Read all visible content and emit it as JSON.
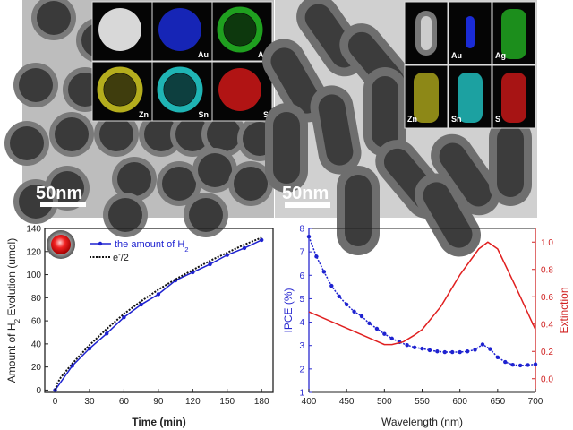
{
  "panels": {
    "tem_left": {
      "scale_bar": "50nm",
      "map_labels": [
        "",
        "Au",
        "Ag",
        "Zn",
        "Sn",
        "S"
      ],
      "map_colors": [
        "#d8d8d8",
        "#1a2bd6",
        "#22b022",
        "#c8c020",
        "#22c8c8",
        "#d01818"
      ]
    },
    "tem_right": {
      "scale_bar": "50nm",
      "map_labels": [
        "",
        "Au",
        "Ag",
        "Zn",
        "Sn",
        "S"
      ],
      "map_colors": [
        "#cccccc",
        "#1a2bd6",
        "#22b022",
        "#c8c020",
        "#22c8c8",
        "#d01818"
      ]
    }
  },
  "chart_data": [
    {
      "type": "line",
      "xlabel": "Time (min)",
      "ylabel": "Amount of H2 Evolution (umol)",
      "ylabel_parts": [
        "Amount of H",
        "2",
        " Evolution (umol)"
      ],
      "xlim": [
        -9,
        190
      ],
      "ylim": [
        -2,
        140
      ],
      "xticks": [
        0,
        30,
        60,
        90,
        120,
        150,
        180
      ],
      "yticks": [
        0,
        20,
        40,
        60,
        80,
        100,
        120,
        140
      ],
      "legend_position": "top-left",
      "series": [
        {
          "name": "the amount of H2",
          "legend_parts": [
            "the amount of H",
            "2"
          ],
          "color": "#1e22d0",
          "style": "solid-markers",
          "x": [
            0,
            15,
            30,
            45,
            60,
            75,
            90,
            105,
            120,
            135,
            150,
            165,
            180
          ],
          "y": [
            0,
            21,
            36,
            49,
            63,
            74,
            83,
            95,
            102,
            109,
            117,
            123,
            130
          ]
        },
        {
          "name": "e-/2",
          "legend_parts": [
            "e",
            "-",
            "/2"
          ],
          "color": "#111111",
          "style": "dotted",
          "x": [
            0,
            2,
            5,
            10,
            15,
            30,
            45,
            60,
            75,
            90,
            105,
            120,
            135,
            150,
            165,
            180
          ],
          "y": [
            0,
            6,
            11,
            17,
            23,
            39,
            53,
            66,
            77,
            87,
            96,
            104,
            112,
            119,
            126,
            132
          ]
        }
      ]
    },
    {
      "type": "line",
      "xlabel": "Wavelength (nm)",
      "ylabel": "IPCE (%)",
      "ylabel_right": "Extinction",
      "xlim": [
        400,
        700
      ],
      "ylim": [
        1,
        8
      ],
      "ylim_right": [
        -0.1,
        1.1
      ],
      "xticks": [
        400,
        450,
        500,
        550,
        600,
        650,
        700
      ],
      "yticks": [
        1,
        2,
        3,
        4,
        5,
        6,
        7,
        8
      ],
      "yticks_right": [
        "0.0",
        "0.2",
        "0.4",
        "0.6",
        "0.8",
        "1.0"
      ],
      "axis_colors": {
        "left": "#2a2ad0",
        "right": "#d02020"
      },
      "series": [
        {
          "axis": "left",
          "color": "#1e22d0",
          "style": "dotted-markers",
          "x": [
            400,
            410,
            420,
            430,
            440,
            450,
            460,
            470,
            480,
            490,
            500,
            510,
            520,
            530,
            540,
            550,
            560,
            570,
            580,
            590,
            600,
            610,
            620,
            630,
            640,
            650,
            660,
            670,
            680,
            690,
            700
          ],
          "y": [
            7.65,
            6.8,
            6.15,
            5.55,
            5.1,
            4.75,
            4.45,
            4.25,
            3.95,
            3.72,
            3.5,
            3.3,
            3.15,
            3.02,
            2.92,
            2.87,
            2.8,
            2.75,
            2.72,
            2.72,
            2.72,
            2.75,
            2.82,
            3.05,
            2.85,
            2.5,
            2.3,
            2.18,
            2.15,
            2.17,
            2.2
          ]
        },
        {
          "axis": "right",
          "color": "#e02020",
          "style": "solid",
          "x": [
            400,
            425,
            450,
            475,
            500,
            510,
            525,
            540,
            550,
            575,
            600,
            625,
            637,
            650,
            675,
            700
          ],
          "y": [
            0.49,
            0.43,
            0.37,
            0.31,
            0.25,
            0.25,
            0.27,
            0.32,
            0.36,
            0.53,
            0.76,
            0.95,
            1.0,
            0.95,
            0.66,
            0.36
          ]
        }
      ]
    }
  ]
}
